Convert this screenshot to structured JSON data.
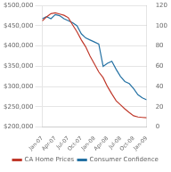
{
  "chart_data": {
    "type": "line",
    "categories": [
      "Jan-07",
      null,
      null,
      "Apr-07",
      null,
      null,
      "Jul-07",
      null,
      null,
      "Oct-07",
      null,
      null,
      "Jan-08",
      null,
      null,
      "Apr-08",
      null,
      null,
      "Jul-08",
      null,
      null,
      "Oct-08",
      null,
      null,
      "Jan-09"
    ],
    "series": [
      {
        "name": "CA Home Prices",
        "color": "#c0392b",
        "axis": "y",
        "values": [
          462000,
          472000,
          480000,
          482000,
          479000,
          476000,
          470000,
          452000,
          435000,
          415000,
          398000,
          375000,
          356000,
          336000,
          322000,
          300000,
          282000,
          265000,
          255000,
          245000,
          236000,
          228000,
          225000,
          224000,
          223000
        ]
      },
      {
        "name": "Consumer Confidence",
        "color": "#2471a3",
        "axis": "y2",
        "values": [
          107,
          109,
          107,
          111,
          110,
          107,
          105,
          103,
          100,
          92,
          88,
          86,
          84,
          82,
          60,
          63,
          65,
          57,
          50,
          45,
          43,
          38,
          32,
          29,
          27
        ]
      }
    ],
    "ylim": [
      200000,
      500000
    ],
    "yticks": [
      {
        "value": 200000,
        "label": "$200,000"
      },
      {
        "value": 250000,
        "label": "$250,000"
      },
      {
        "value": 300000,
        "label": "$300,000"
      },
      {
        "value": 350000,
        "label": "$350,000"
      },
      {
        "value": 400000,
        "label": "$400,000"
      },
      {
        "value": 450000,
        "label": "$450,000"
      },
      {
        "value": 500000,
        "label": "$500,000"
      }
    ],
    "y2lim": [
      0,
      120
    ],
    "y2ticks": [
      0,
      20,
      40,
      60,
      80,
      100,
      120
    ],
    "grid": true,
    "legend": "bottom"
  }
}
